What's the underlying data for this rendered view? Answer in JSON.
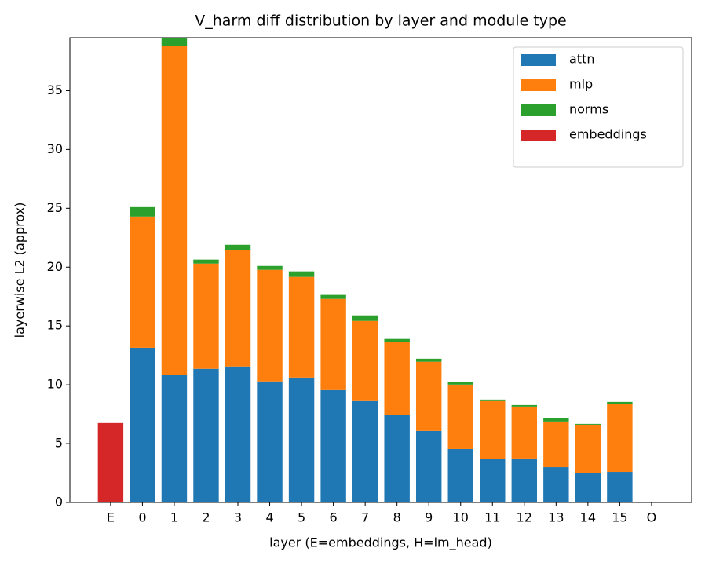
{
  "chart_data": {
    "type": "stacked_bar",
    "title": "V_harm diff distribution by layer and module type",
    "xlabel": "layer (E=embeddings, H=lm_head)",
    "ylabel": "layerwise L2 (approx)",
    "categories": [
      "E",
      "0",
      "1",
      "2",
      "3",
      "4",
      "5",
      "6",
      "7",
      "8",
      "9",
      "10",
      "11",
      "12",
      "13",
      "14",
      "15",
      "O"
    ],
    "series": [
      {
        "name": "attn",
        "color": "#1f77b4",
        "values": [
          null,
          13.15,
          10.82,
          11.36,
          11.56,
          10.29,
          10.62,
          9.55,
          8.62,
          7.41,
          6.08,
          4.54,
          3.67,
          3.74,
          3.0,
          2.47,
          2.6,
          null
        ]
      },
      {
        "name": "mlp",
        "color": "#ff7f0e",
        "values": [
          null,
          11.15,
          28.0,
          8.94,
          9.88,
          9.48,
          8.55,
          7.75,
          6.81,
          6.22,
          5.88,
          5.48,
          4.95,
          4.41,
          3.88,
          4.14,
          5.75,
          null
        ]
      },
      {
        "name": "norms",
        "color": "#2ca02c",
        "values": [
          null,
          0.8,
          0.8,
          0.34,
          0.46,
          0.33,
          0.47,
          0.34,
          0.47,
          0.27,
          0.26,
          0.2,
          0.13,
          0.13,
          0.27,
          0.07,
          0.2,
          null
        ]
      },
      {
        "name": "embeddings",
        "color": "#d62728",
        "values": [
          6.75,
          null,
          null,
          null,
          null,
          null,
          null,
          null,
          null,
          null,
          null,
          null,
          null,
          null,
          null,
          null,
          null,
          null
        ]
      }
    ],
    "ylim": [
      0,
      39.5
    ],
    "yticks": [
      0,
      5,
      10,
      15,
      20,
      25,
      30,
      35
    ],
    "grid": false,
    "legend": "upper right"
  }
}
